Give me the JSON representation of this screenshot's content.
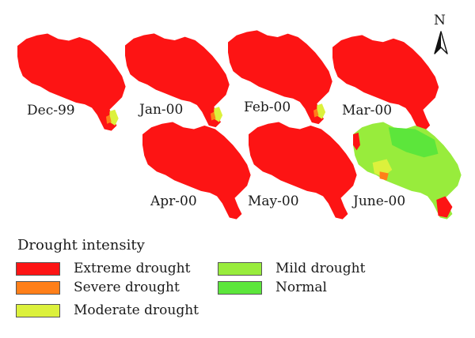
{
  "colors": {
    "extreme": "#fd1414",
    "severe": "#ff7f19",
    "moderate": "#dcf13c",
    "mild": "#98ec3c",
    "normal": "#5ce63b"
  },
  "panels": [
    {
      "label": "Dec-99",
      "state": "extreme_with_corner"
    },
    {
      "label": "Jan-00",
      "state": "extreme_with_corner"
    },
    {
      "label": "Feb-00",
      "state": "extreme_with_corner"
    },
    {
      "label": "Mar-00",
      "state": "extreme"
    },
    {
      "label": "Apr-00",
      "state": "extreme"
    },
    {
      "label": "May-00",
      "state": "extreme"
    },
    {
      "label": "June-00",
      "state": "mostly_mild"
    }
  ],
  "north_label": "N",
  "legend": {
    "title": "Drought intensity",
    "items": [
      {
        "label": "Extreme drought",
        "color": "#fd1414"
      },
      {
        "label": "Severe drought",
        "color": "#ff7f19"
      },
      {
        "label": "Moderate drought",
        "color": "#dcf13c"
      },
      {
        "label": "Mild drought",
        "color": "#98ec3c"
      },
      {
        "label": "Normal",
        "color": "#5ce63b"
      }
    ]
  }
}
